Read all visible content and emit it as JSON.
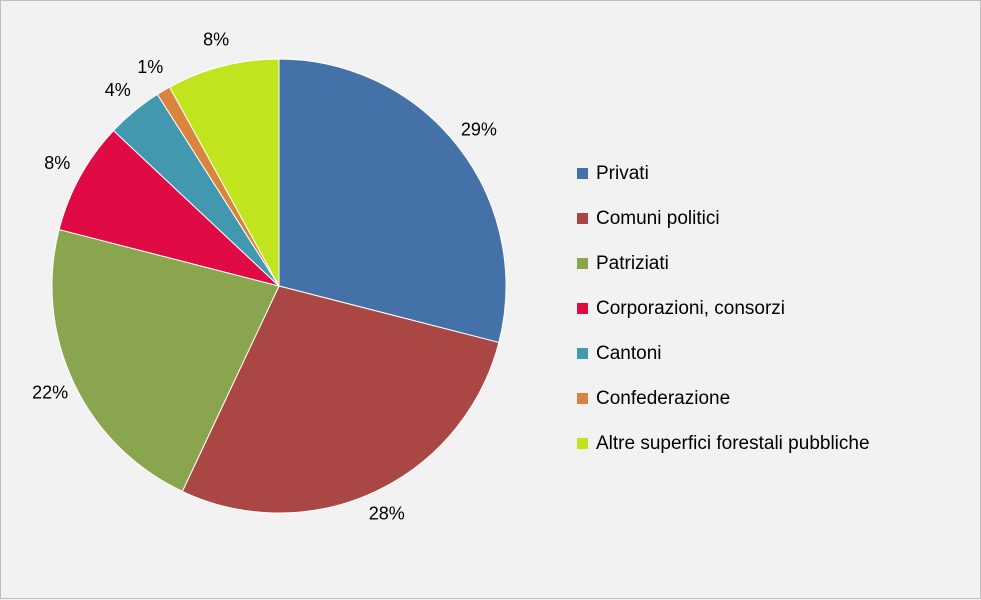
{
  "chart_data": {
    "type": "pie",
    "title": "",
    "categories": [
      "Privati",
      "Comuni politici",
      "Patriziati",
      "Corporazioni, consorzi",
      "Cantoni",
      "Confederazione",
      "Altre superfici forestali pubbliche"
    ],
    "values": [
      29,
      28,
      22,
      8,
      4,
      1,
      8
    ],
    "labels": [
      "29%",
      "28%",
      "22%",
      "8%",
      "4%",
      "1%",
      "8%"
    ],
    "colors": [
      "#4472a8",
      "#aa4744",
      "#89a54e",
      "#e00a45",
      "#4198af",
      "#db843d",
      "#c0e41e"
    ],
    "legend_position": "right",
    "start_angle": "top",
    "direction": "clockwise"
  }
}
